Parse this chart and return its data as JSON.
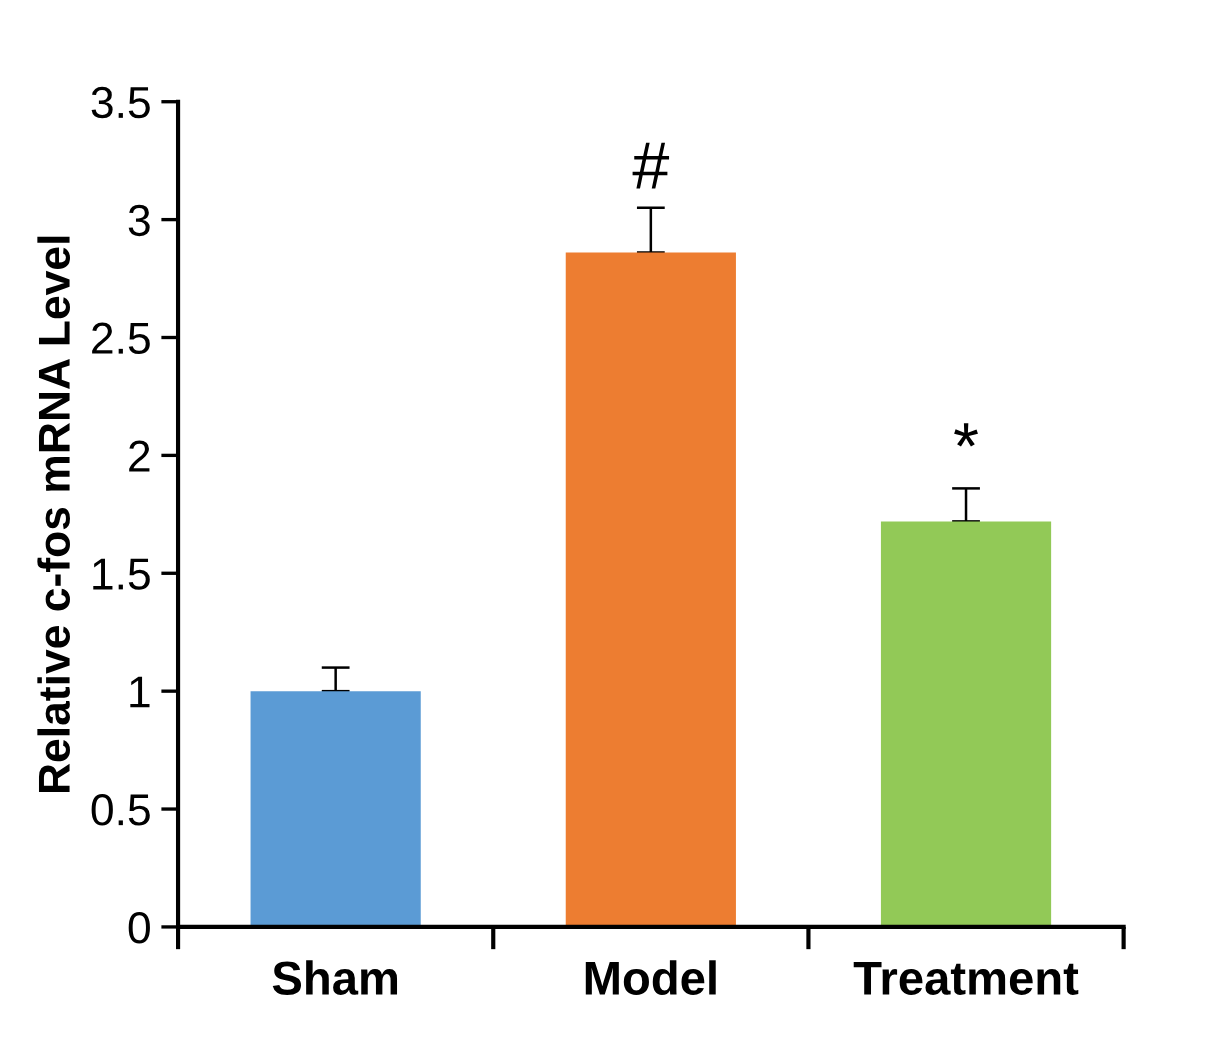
{
  "chart_data": {
    "type": "bar",
    "ylabel": "Relative c-fos mRNA Level",
    "categories": [
      "Sham",
      "Model",
      "Treatment"
    ],
    "values": [
      1.0,
      2.86,
      1.72
    ],
    "colors": [
      "#5b9bd5",
      "#ed7d31",
      "#92c957"
    ],
    "errors": [
      [
        1.0,
        1.1
      ],
      [
        2.86,
        3.05
      ],
      [
        1.72,
        1.86
      ]
    ],
    "ylim": [
      0,
      3.5
    ],
    "yticks": [
      0,
      0.5,
      1,
      1.5,
      2,
      2.5,
      3,
      3.5
    ],
    "annotations": [
      {
        "text": "#",
        "x": "Model",
        "y": 3.05
      },
      {
        "text": "*",
        "x": "Treatment",
        "y": 1.86
      }
    ],
    "grid": false,
    "legend": false
  }
}
